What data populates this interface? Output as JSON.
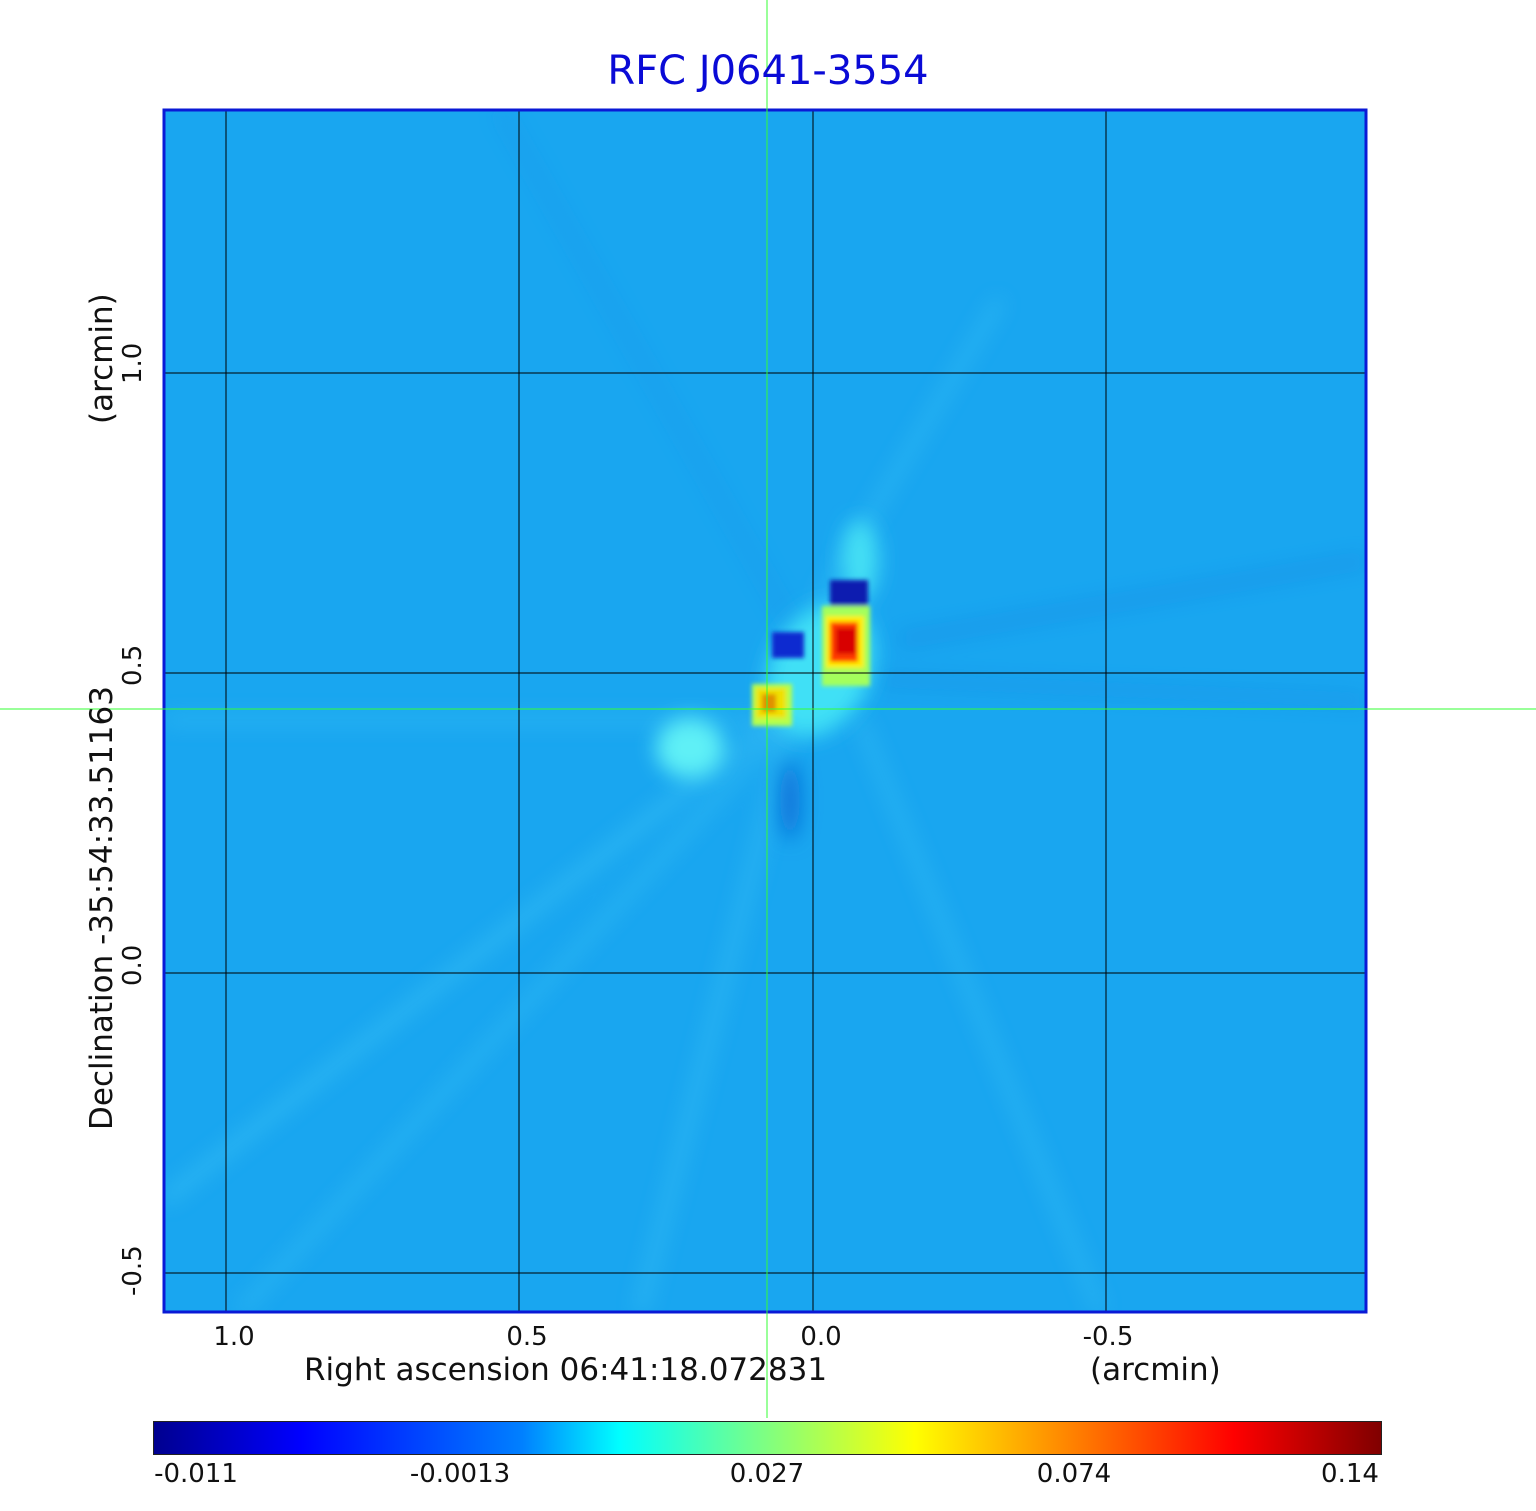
{
  "title": "RFC J0641-3554",
  "x_axis": {
    "label": "Right ascension  06:41:18.072831",
    "unit": "(arcmin)",
    "ticks": [
      "1.0",
      "0.5",
      "0.0",
      "-0.5"
    ]
  },
  "y_axis": {
    "label": "Declination  -35:54:33.51163",
    "unit": "(arcmin)",
    "ticks": [
      "1.0",
      "0.5",
      "0.0",
      "-0.5"
    ]
  },
  "colorbar": {
    "ticks": [
      "-0.011",
      "-0.0013",
      "0.027",
      "0.074",
      "0.14"
    ]
  },
  "colors": {
    "title": "#0a0ad6",
    "frame": "#0a1ad6",
    "background_map": "#19a6f0",
    "crosshair": "#33ff33",
    "grid": "#000000"
  }
}
